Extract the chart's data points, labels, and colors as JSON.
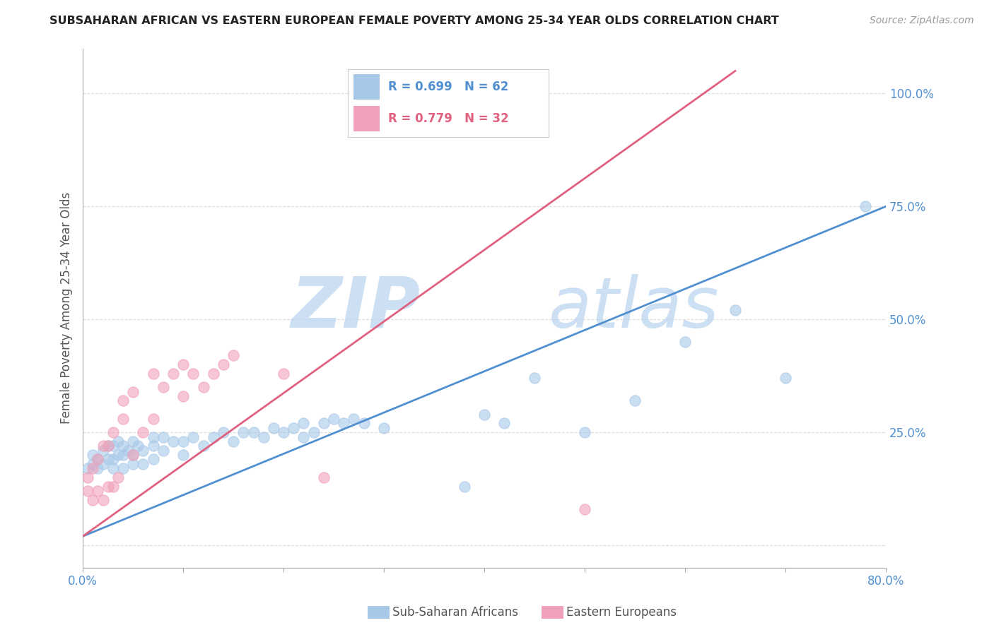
{
  "title": "SUBSAHARAN AFRICAN VS EASTERN EUROPEAN FEMALE POVERTY AMONG 25-34 YEAR OLDS CORRELATION CHART",
  "source": "Source: ZipAtlas.com",
  "ylabel": "Female Poverty Among 25-34 Year Olds",
  "xlim": [
    0.0,
    0.8
  ],
  "ylim": [
    -0.05,
    1.1
  ],
  "R_blue": 0.699,
  "N_blue": 62,
  "R_pink": 0.779,
  "N_pink": 32,
  "color_blue": "#a8c8e8",
  "color_pink": "#f0a0b8",
  "line_blue": "#5090d0",
  "line_pink": "#e06080",
  "watermark_zip": "ZIP",
  "watermark_atlas": "atlas",
  "watermark_color_zip": "#c0d8f0",
  "watermark_color_atlas": "#c0d8f0",
  "background_color": "#ffffff",
  "grid_color": "#cccccc",
  "title_color": "#222222",
  "label_color": "#555555",
  "yticklabel_color": "#5090d0",
  "legend_R_color": "#5090d0",
  "legend_N_color": "#e06080",
  "blue_line_x": [
    0.0,
    0.8
  ],
  "blue_line_y": [
    0.02,
    0.75
  ],
  "pink_line_x": [
    0.0,
    0.65
  ],
  "pink_line_y": [
    0.02,
    1.05
  ],
  "blue_scatter_x": [
    0.005,
    0.01,
    0.01,
    0.015,
    0.015,
    0.02,
    0.02,
    0.025,
    0.025,
    0.03,
    0.03,
    0.03,
    0.035,
    0.035,
    0.04,
    0.04,
    0.04,
    0.045,
    0.05,
    0.05,
    0.05,
    0.055,
    0.06,
    0.06,
    0.07,
    0.07,
    0.07,
    0.08,
    0.08,
    0.09,
    0.1,
    0.1,
    0.11,
    0.12,
    0.13,
    0.14,
    0.15,
    0.16,
    0.17,
    0.18,
    0.19,
    0.2,
    0.21,
    0.22,
    0.22,
    0.23,
    0.24,
    0.25,
    0.26,
    0.27,
    0.28,
    0.3,
    0.38,
    0.4,
    0.42,
    0.45,
    0.5,
    0.55,
    0.6,
    0.65,
    0.7,
    0.78
  ],
  "blue_scatter_y": [
    0.17,
    0.18,
    0.2,
    0.17,
    0.19,
    0.18,
    0.21,
    0.19,
    0.22,
    0.17,
    0.19,
    0.22,
    0.2,
    0.23,
    0.17,
    0.2,
    0.22,
    0.21,
    0.18,
    0.2,
    0.23,
    0.22,
    0.18,
    0.21,
    0.19,
    0.22,
    0.24,
    0.21,
    0.24,
    0.23,
    0.2,
    0.23,
    0.24,
    0.22,
    0.24,
    0.25,
    0.23,
    0.25,
    0.25,
    0.24,
    0.26,
    0.25,
    0.26,
    0.24,
    0.27,
    0.25,
    0.27,
    0.28,
    0.27,
    0.28,
    0.27,
    0.26,
    0.13,
    0.29,
    0.27,
    0.37,
    0.25,
    0.32,
    0.45,
    0.52,
    0.37,
    0.75
  ],
  "pink_scatter_x": [
    0.005,
    0.005,
    0.01,
    0.01,
    0.015,
    0.015,
    0.02,
    0.02,
    0.025,
    0.025,
    0.03,
    0.03,
    0.035,
    0.04,
    0.04,
    0.05,
    0.05,
    0.06,
    0.07,
    0.07,
    0.08,
    0.09,
    0.1,
    0.1,
    0.11,
    0.12,
    0.13,
    0.14,
    0.15,
    0.2,
    0.24,
    0.5
  ],
  "pink_scatter_y": [
    0.12,
    0.15,
    0.1,
    0.17,
    0.12,
    0.19,
    0.1,
    0.22,
    0.13,
    0.22,
    0.13,
    0.25,
    0.15,
    0.28,
    0.32,
    0.2,
    0.34,
    0.25,
    0.28,
    0.38,
    0.35,
    0.38,
    0.33,
    0.4,
    0.38,
    0.35,
    0.38,
    0.4,
    0.42,
    0.38,
    0.15,
    0.08
  ]
}
